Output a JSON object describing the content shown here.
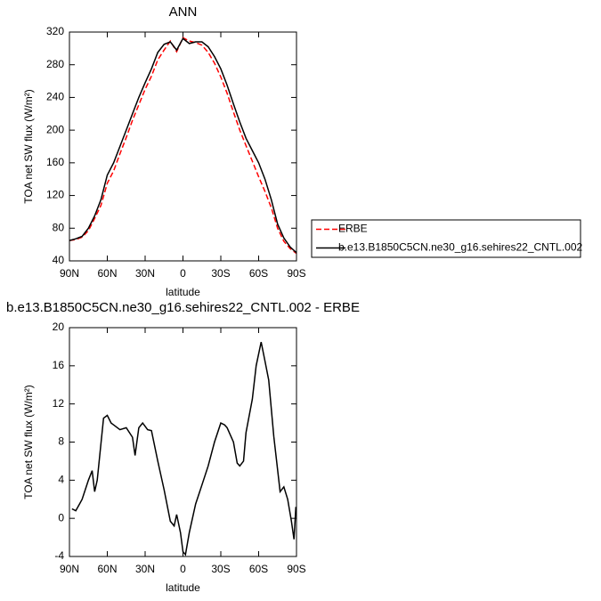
{
  "chart_data": [
    {
      "type": "line",
      "title": "ANN",
      "x_label": "latitude",
      "y_label": "TOA net SW flux (W/m²)",
      "x": [
        90,
        85,
        80,
        75,
        70,
        65,
        60,
        55,
        50,
        45,
        40,
        35,
        30,
        25,
        20,
        15,
        10,
        5,
        0,
        -5,
        -10,
        -15,
        -20,
        -25,
        -30,
        -35,
        -40,
        -45,
        -50,
        -55,
        -60,
        -65,
        -70,
        -75,
        -80,
        -85,
        -90
      ],
      "series": [
        {
          "name": "ERBE",
          "color": "#ff0000",
          "dashed": true,
          "values": [
            65,
            66,
            69,
            77,
            92,
            108,
            135,
            150,
            171,
            191,
            212,
            231,
            250,
            266,
            286,
            298,
            309,
            296,
            313,
            309,
            307,
            304,
            295,
            282,
            265,
            245,
            222,
            200,
            181,
            162,
            143,
            125,
            105,
            80,
            64,
            55,
            49
          ]
        },
        {
          "name": "b.e13.B1850C5CN.ne30_g16.sehires22_CNTL.002",
          "color": "#000000",
          "dashed": false,
          "values": [
            65,
            67,
            70,
            80,
            95,
            115,
            145,
            160,
            180,
            200,
            220,
            240,
            258,
            275,
            295,
            305,
            308,
            298,
            312,
            306,
            308,
            308,
            302,
            290,
            275,
            255,
            232,
            210,
            190,
            175,
            160,
            140,
            115,
            85,
            68,
            57,
            50
          ]
        }
      ],
      "xlim": [
        90,
        -90
      ],
      "xticks": [
        {
          "value": 90,
          "label": "90N"
        },
        {
          "value": 60,
          "label": "60N"
        },
        {
          "value": 30,
          "label": "30N"
        },
        0,
        {
          "value": -30,
          "label": "30S"
        },
        {
          "value": -60,
          "label": "60S"
        },
        {
          "value": -90,
          "label": "90S"
        }
      ],
      "ylim": [
        40,
        320
      ],
      "yticks": [
        40,
        80,
        120,
        160,
        200,
        240,
        280,
        320
      ],
      "legend": "right"
    },
    {
      "type": "line",
      "title": "b.e13.B1850C5CN.ne30_g16.sehires22_CNTL.002 - ERBE",
      "x_label": "latitude",
      "y_label": "TOA net SW flux (W/m²)",
      "x": [
        88,
        85,
        82,
        80,
        75,
        72,
        70,
        68,
        63,
        60,
        57,
        55,
        50,
        45,
        40,
        38,
        35,
        32,
        28,
        25,
        20,
        15,
        10,
        7,
        5,
        2,
        0,
        -2,
        -5,
        -10,
        -15,
        -20,
        -25,
        -30,
        -33,
        -35,
        -40,
        -43,
        -45,
        -48,
        -50,
        -55,
        -58,
        -62,
        -65,
        -68,
        -72,
        -77,
        -80,
        -83,
        -86,
        -88,
        -89.5
      ],
      "values": [
        1,
        0.8,
        1.5,
        2,
        4,
        5,
        2.8,
        4,
        10.5,
        10.8,
        10,
        9.8,
        9.3,
        9.5,
        8.5,
        6.6,
        9.5,
        10,
        9.3,
        9.2,
        6,
        3,
        -0.3,
        -0.8,
        0.4,
        -1.5,
        -3.5,
        -3.8,
        -1.5,
        1.5,
        3.5,
        5.5,
        8,
        10,
        9.8,
        9.5,
        8,
        5.8,
        5.5,
        6,
        9,
        12.5,
        16,
        18.5,
        16.5,
        14.5,
        8.6,
        2.8,
        3.3,
        2,
        -0.3,
        -2.2,
        1.2
      ],
      "color": "#000000",
      "xlim": [
        90,
        -90
      ],
      "xticks": [
        {
          "value": 90,
          "label": "90N"
        },
        {
          "value": 60,
          "label": "60N"
        },
        {
          "value": 30,
          "label": "30N"
        },
        0,
        {
          "value": -30,
          "label": "30S"
        },
        {
          "value": -60,
          "label": "60S"
        },
        {
          "value": -90,
          "label": "90S"
        }
      ],
      "ylim": [
        -4,
        20
      ],
      "yticks": [
        -4,
        0,
        4,
        8,
        12,
        16,
        20
      ]
    }
  ]
}
